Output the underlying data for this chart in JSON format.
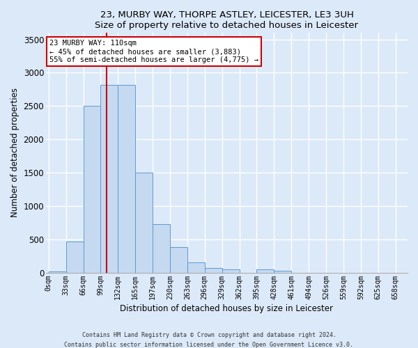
{
  "title1": "23, MURBY WAY, THORPE ASTLEY, LEICESTER, LE3 3UH",
  "title2": "Size of property relative to detached houses in Leicester",
  "xlabel": "Distribution of detached houses by size in Leicester",
  "ylabel": "Number of detached properties",
  "bar_color": "#c5d9f0",
  "bar_edge_color": "#5b9bd5",
  "background_color": "#dce9f8",
  "fig_background": "#dce9f8",
  "grid_color": "#ffffff",
  "categories": [
    "0sqm",
    "33sqm",
    "66sqm",
    "99sqm",
    "132sqm",
    "165sqm",
    "197sqm",
    "230sqm",
    "263sqm",
    "296sqm",
    "329sqm",
    "362sqm",
    "395sqm",
    "428sqm",
    "461sqm",
    "494sqm",
    "526sqm",
    "559sqm",
    "592sqm",
    "625sqm",
    "658sqm"
  ],
  "values": [
    20,
    470,
    2500,
    2820,
    2820,
    1500,
    730,
    390,
    155,
    75,
    50,
    0,
    50,
    35,
    0,
    0,
    0,
    0,
    0,
    0,
    0
  ],
  "ylim": [
    0,
    3600
  ],
  "yticks": [
    0,
    500,
    1000,
    1500,
    2000,
    2500,
    3000,
    3500
  ],
  "property_line_x": 110,
  "annotation_title": "23 MURBY WAY: 110sqm",
  "annotation_line1": "← 45% of detached houses are smaller (3,883)",
  "annotation_line2": "55% of semi-detached houses are larger (4,775) →",
  "vline_color": "#cc0000",
  "annotation_box_color": "#ffffff",
  "annotation_box_edge": "#cc0000",
  "footer1": "Contains HM Land Registry data © Crown copyright and database right 2024.",
  "footer2": "Contains public sector information licensed under the Open Government Licence v3.0."
}
